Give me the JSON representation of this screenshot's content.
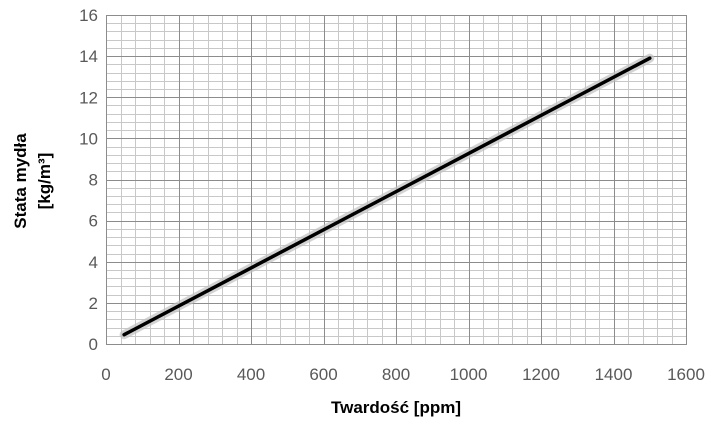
{
  "chart_data": {
    "type": "line",
    "title": "",
    "xlabel": "Twardość [ppm]",
    "ylabel_line1": "Stata mydła",
    "ylabel_line2": "[kg/m³]",
    "xlim": [
      0,
      1600
    ],
    "ylim": [
      0,
      16
    ],
    "xticks": [
      0,
      200,
      400,
      600,
      800,
      1000,
      1200,
      1400,
      1600
    ],
    "yticks": [
      0,
      2,
      4,
      6,
      8,
      10,
      12,
      14,
      16
    ],
    "grid": true,
    "grid_minor_x_step": 40,
    "grid_minor_y_step": 0.4,
    "legend": "none",
    "series": [
      {
        "x": [
          50,
          1500
        ],
        "y": [
          0.45,
          13.9
        ],
        "color": "#000000"
      }
    ],
    "colors": {
      "major_grid": "#8c8c8c",
      "minor_grid": "#c8c8c8",
      "line_shadow": "#c0c0c0"
    }
  }
}
